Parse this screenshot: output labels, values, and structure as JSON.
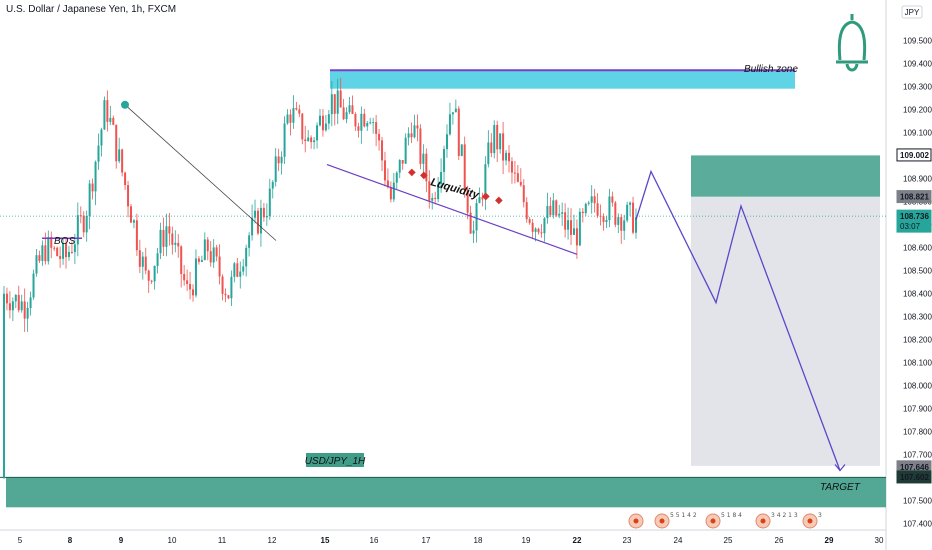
{
  "header": {
    "symbol": "U.S. Dollar / Japanese Yen, 1h, FXCM"
  },
  "currency": "JPY",
  "colors": {
    "up": "#26a69a",
    "down": "#ef5350",
    "zone": "#5fd4e6",
    "target": "#3f9d8a",
    "path": "#5b47c9",
    "bell": "#2f9a7c"
  },
  "chart_data": {
    "type": "candlestick",
    "ylim": [
      107.38,
      109.58
    ],
    "y_ticks": [
      109.5,
      109.4,
      109.3,
      109.2,
      109.1,
      108.9,
      108.8,
      108.7,
      108.6,
      108.5,
      108.4,
      108.3,
      108.2,
      108.1,
      108.0,
      107.9,
      107.8,
      107.7,
      107.5,
      107.4
    ],
    "x_ticks": [
      {
        "label": "5",
        "bold": false
      },
      {
        "label": "8",
        "bold": true
      },
      {
        "label": "9",
        "bold": true
      },
      {
        "label": "10",
        "bold": false
      },
      {
        "label": "11",
        "bold": false
      },
      {
        "label": "12",
        "bold": false
      },
      {
        "label": "15",
        "bold": true
      },
      {
        "label": "16",
        "bold": false
      },
      {
        "label": "17",
        "bold": false
      },
      {
        "label": "18",
        "bold": false
      },
      {
        "label": "19",
        "bold": false
      },
      {
        "label": "22",
        "bold": true
      },
      {
        "label": "23",
        "bold": false
      },
      {
        "label": "24",
        "bold": false
      },
      {
        "label": "25",
        "bold": false
      },
      {
        "label": "26",
        "bold": false
      },
      {
        "label": "29",
        "bold": true
      },
      {
        "label": "30",
        "bold": false
      }
    ],
    "price_tags": [
      {
        "value": 109.002,
        "label": "109.002",
        "style": "outline"
      },
      {
        "value": 108.821,
        "label": "108.821",
        "style": "gray"
      },
      {
        "value": 108.736,
        "label": "108.736",
        "sub": "03:07",
        "style": "current"
      },
      {
        "value": 107.646,
        "label": "107.646",
        "style": "gray"
      },
      {
        "value": 107.602,
        "label": "107.602",
        "style": "dark"
      }
    ],
    "anchors": [
      108.4,
      108.35,
      108.6,
      108.55,
      108.75,
      109.22,
      108.85,
      108.45,
      108.7,
      108.4,
      108.6,
      108.4,
      108.65,
      108.8,
      109.2,
      109.05,
      109.25,
      109.15,
      109.2,
      108.8,
      109.15,
      108.8,
      109.25,
      108.65,
      109.1,
      108.9,
      108.7,
      108.75,
      108.65,
      108.8,
      108.75,
      108.72
    ],
    "annotations": {
      "bullish_zone": "Bullish zone",
      "bos": "BOS",
      "liquidity": "Luquidity",
      "symbol_label": "USD/JPY_1H",
      "target": "TARGET"
    },
    "projection_path": [
      108.72,
      108.93,
      108.36,
      108.78,
      107.63
    ],
    "zones": {
      "bullish": [
        109.29,
        109.37
      ],
      "target": [
        107.47,
        107.6
      ],
      "projection_top": [
        108.82,
        109.0
      ],
      "projection_box": [
        107.65,
        108.82
      ]
    },
    "events": [
      {
        "kind": "flag"
      },
      {
        "kind": "flag-group",
        "text": "5 5 1 4 2"
      },
      {
        "kind": "flag-group",
        "text": "5 1 8 4"
      },
      {
        "kind": "flag-group",
        "text": "3 4 2 1 3"
      },
      {
        "kind": "flag-group",
        "text": "3"
      }
    ]
  }
}
